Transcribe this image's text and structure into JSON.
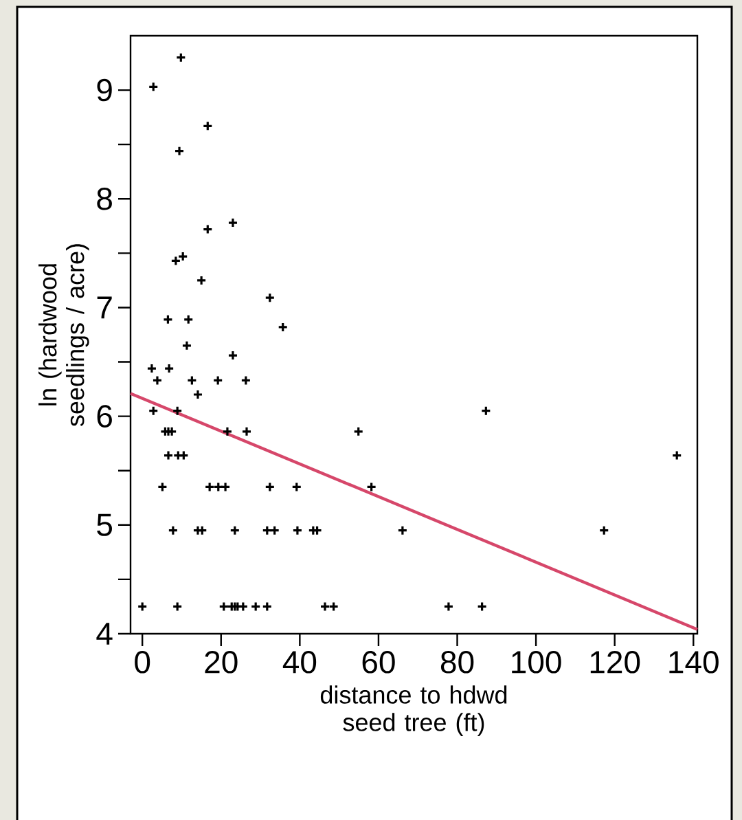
{
  "chart_data": {
    "type": "scatter",
    "xlabel": "distance to hdwd seed tree (ft)",
    "ylabel": "ln (hardwood seedlings / acre)",
    "xlim": [
      -3,
      141
    ],
    "ylim": [
      4,
      9.5
    ],
    "xticks": [
      0,
      20,
      40,
      60,
      80,
      100,
      120,
      140
    ],
    "yticks": [
      4,
      5,
      6,
      7,
      8,
      9
    ],
    "marker": "cross",
    "series": [
      {
        "color": "#000000",
        "x": [
          9.8,
          2.8,
          16.6,
          9.4,
          23.0,
          16.6,
          10.3,
          8.5,
          15.0,
          32.4,
          6.5,
          11.7,
          35.7,
          11.3,
          23.0,
          2.4,
          6.8,
          3.8,
          12.6,
          19.2,
          26.3,
          14.1,
          2.8,
          8.9,
          87.3,
          5.8,
          6.6,
          7.5,
          21.6,
          26.5,
          54.9,
          6.6,
          9.1,
          10.5,
          135.8,
          5.1,
          17.1,
          19.3,
          21.1,
          32.4,
          39.2,
          58.2,
          7.8,
          14.1,
          15.2,
          23.5,
          31.7,
          33.6,
          39.4,
          43.4,
          44.4,
          66.1,
          117.3,
          0,
          8.9,
          20.7,
          22.7,
          23.5,
          24.2,
          25.6,
          28.8,
          31.7,
          46.4,
          48.6,
          77.8,
          86.3
        ],
        "values": [
          9.3,
          9.03,
          8.67,
          8.44,
          7.78,
          7.72,
          7.47,
          7.43,
          7.25,
          7.09,
          6.89,
          6.89,
          6.82,
          6.65,
          6.56,
          6.44,
          6.44,
          6.33,
          6.33,
          6.33,
          6.33,
          6.2,
          6.05,
          6.05,
          6.05,
          5.86,
          5.86,
          5.86,
          5.86,
          5.86,
          5.86,
          5.64,
          5.64,
          5.64,
          5.64,
          5.35,
          5.35,
          5.35,
          5.35,
          5.35,
          5.35,
          5.35,
          4.95,
          4.95,
          4.95,
          4.95,
          4.95,
          4.95,
          4.95,
          4.95,
          4.95,
          4.95,
          4.95,
          4.25,
          4.25,
          4.25,
          4.25,
          4.25,
          4.25,
          4.25,
          4.25,
          4.25,
          4.25,
          4.25,
          4.25,
          4.25
        ]
      },
      {
        "type": "line",
        "color": "#d6476a",
        "marker": "none",
        "x": [
          -3,
          141
        ],
        "values": [
          6.21,
          4.04
        ]
      }
    ]
  }
}
